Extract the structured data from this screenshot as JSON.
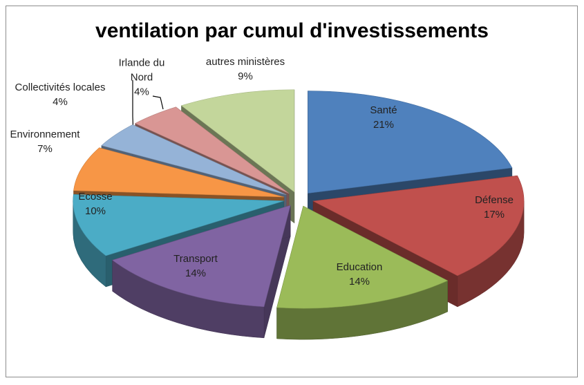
{
  "chart_data": {
    "type": "pie3d",
    "title": "ventilation par cumul d'investissements",
    "categories": [
      "Santé",
      "Défense",
      "Education",
      "Transport",
      "Ecosse",
      "Environnement",
      "Collectivités locales",
      "Irlande du Nord",
      "autres ministères"
    ],
    "values": [
      21,
      17,
      14,
      14,
      10,
      7,
      4,
      4,
      9
    ],
    "value_labels": [
      "21%",
      "17%",
      "14%",
      "14%",
      "10%",
      "7%",
      "4%",
      "4%",
      "9%"
    ],
    "colors": [
      "#4f81bd",
      "#c0504d",
      "#9bbb59",
      "#8064a2",
      "#4bacc6",
      "#f79646",
      "#95b3d7",
      "#d99694",
      "#c3d69b"
    ]
  }
}
